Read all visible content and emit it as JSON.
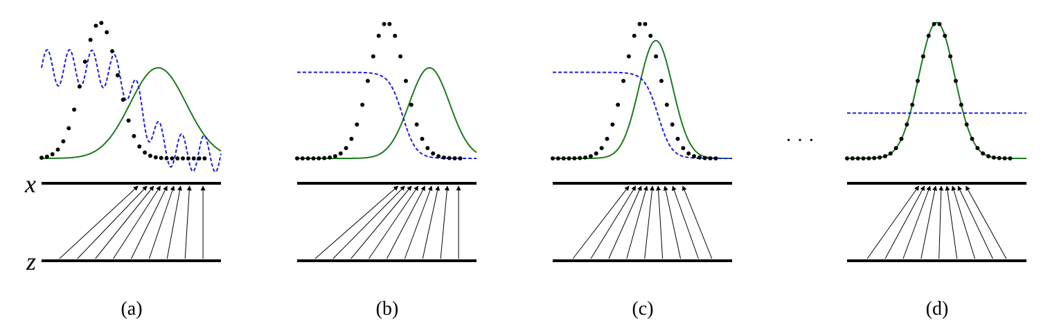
{
  "figure": {
    "axis_labels": {
      "x": "x",
      "z": "z"
    },
    "ellipsis": "· · ·",
    "colors": {
      "data_density": "#000000",
      "model_density": "#1a7a1a",
      "discriminator": "#1b1bdd",
      "mapping": "#000000"
    },
    "panels": [
      {
        "id": "a",
        "caption": "(a)",
        "data_mean": 2.6,
        "data_sd": 0.8,
        "data_peak": 1.5,
        "model_mean": 5.2,
        "model_sd": 1.25,
        "model_peak": 1.0,
        "discriminator": {
          "type": "wavy",
          "start": 1.0,
          "end": 0.05,
          "center": 4.5,
          "width": 0.45,
          "amplitude": 0.2,
          "period": 1.0
        },
        "mapping": {
          "z": [
            0.8,
            1.6,
            2.4,
            3.2,
            4.0,
            4.8,
            5.6,
            6.4,
            7.2
          ],
          "x": [
            4.3,
            4.7,
            5.0,
            5.3,
            5.6,
            5.9,
            6.2,
            6.6,
            7.2
          ]
        }
      },
      {
        "id": "b",
        "caption": "(b)",
        "data_mean": 4.0,
        "data_sd": 0.8,
        "data_peak": 1.5,
        "model_mean": 5.9,
        "model_sd": 0.9,
        "model_peak": 1.0,
        "discriminator": {
          "type": "sigmoid",
          "start": 0.95,
          "end": 0.0,
          "center": 4.7,
          "width": 0.3
        },
        "mapping": {
          "z": [
            0.8,
            1.6,
            2.4,
            3.2,
            4.0,
            4.8,
            5.6,
            6.4,
            7.2
          ],
          "x": [
            4.5,
            4.8,
            5.1,
            5.4,
            5.7,
            6.0,
            6.3,
            6.7,
            7.2
          ]
        }
      },
      {
        "id": "c",
        "caption": "(c)",
        "data_mean": 4.0,
        "data_sd": 0.8,
        "data_peak": 1.5,
        "model_mean": 4.6,
        "model_sd": 0.75,
        "model_peak": 1.3,
        "discriminator": {
          "type": "sigmoid",
          "start": 0.95,
          "end": 0.0,
          "center": 4.7,
          "width": 0.3
        },
        "mapping": {
          "z": [
            0.9,
            1.7,
            2.5,
            3.3,
            4.1,
            4.9,
            5.7,
            6.5,
            7.1
          ],
          "x": [
            3.4,
            3.7,
            3.95,
            4.2,
            4.45,
            4.7,
            5.0,
            5.35,
            5.8
          ]
        }
      },
      {
        "id": "d",
        "caption": "(d)",
        "data_mean": 4.0,
        "data_sd": 0.8,
        "data_peak": 1.5,
        "model_mean": 4.0,
        "model_sd": 0.8,
        "model_peak": 1.5,
        "discriminator": {
          "type": "flat",
          "start": 0.5,
          "end": 0.5
        },
        "mapping": {
          "z": [
            0.9,
            1.7,
            2.5,
            3.3,
            4.1,
            4.9,
            5.7,
            6.5,
            7.1
          ],
          "x": [
            3.2,
            3.45,
            3.7,
            3.95,
            4.2,
            4.45,
            4.7,
            4.95,
            5.3
          ]
        }
      }
    ]
  }
}
